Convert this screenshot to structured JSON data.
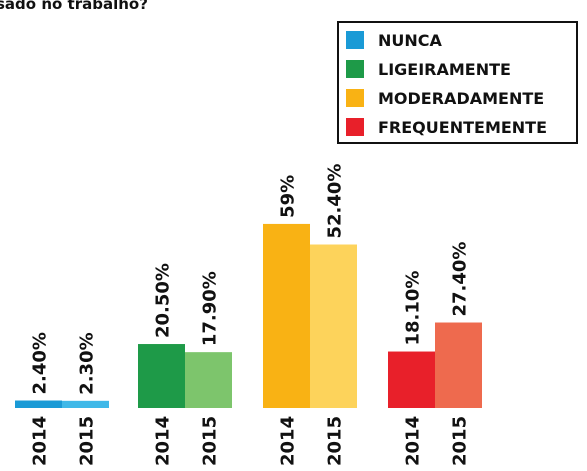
{
  "chart_data": {
    "type": "bar",
    "title": "sado no trabalho?",
    "categories": [
      "NUNCA",
      "LIGEIRAMENTE",
      "MODERADAMENTE",
      "FREQUENTEMENTE"
    ],
    "series": [
      {
        "name": "2014",
        "colors": [
          "#1a9ad6",
          "#1e9a48",
          "#f9b214",
          "#e8202a"
        ],
        "values": [
          2.4,
          20.5,
          59,
          18.1
        ],
        "value_labels": [
          "2.40%",
          "20.50%",
          "59%",
          "18.10%"
        ]
      },
      {
        "name": "2015",
        "colors": [
          "#3fb8e8",
          "#7dc56c",
          "#fdd35b",
          "#ee6a4e"
        ],
        "values": [
          2.3,
          17.9,
          52.4,
          27.4
        ],
        "value_labels": [
          "2.30%",
          "17.90%",
          "52.40%",
          "27.40%"
        ]
      }
    ]
  }
}
